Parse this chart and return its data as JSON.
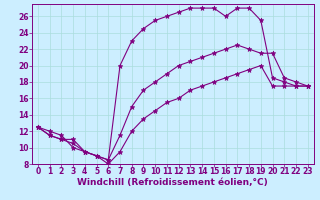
{
  "background_color": "#cceeff",
  "line_color": "#800080",
  "xlabel": "Windchill (Refroidissement éolien,°C)",
  "xlim": [
    -0.5,
    23.5
  ],
  "ylim": [
    8,
    27.5
  ],
  "yticks": [
    8,
    10,
    12,
    14,
    16,
    18,
    20,
    22,
    24,
    26
  ],
  "xticks": [
    0,
    1,
    2,
    3,
    4,
    5,
    6,
    7,
    8,
    9,
    10,
    11,
    12,
    13,
    14,
    15,
    16,
    17,
    18,
    19,
    20,
    21,
    22,
    23
  ],
  "line1_x": [
    0,
    1,
    2,
    3,
    4,
    5,
    6,
    7,
    8,
    9,
    10,
    11,
    12,
    13,
    14,
    15,
    16,
    17,
    18,
    19,
    20,
    21,
    22,
    23
  ],
  "line1_y": [
    12.5,
    12.0,
    11.5,
    10.0,
    9.5,
    9.0,
    8.5,
    20.0,
    23.0,
    24.5,
    25.5,
    26.0,
    26.5,
    27.0,
    27.0,
    27.0,
    26.0,
    27.0,
    27.0,
    25.5,
    18.5,
    18.0,
    17.5,
    17.5
  ],
  "line2_x": [
    0,
    1,
    2,
    3,
    4,
    5,
    6,
    7,
    8,
    9,
    10,
    11,
    12,
    13,
    14,
    15,
    16,
    17,
    18,
    19,
    20,
    21,
    22,
    23
  ],
  "line2_y": [
    12.5,
    11.5,
    11.0,
    11.0,
    9.5,
    9.0,
    8.5,
    11.5,
    15.0,
    17.0,
    18.0,
    19.0,
    20.0,
    20.5,
    21.0,
    21.5,
    22.0,
    22.5,
    22.0,
    21.5,
    21.5,
    18.5,
    18.0,
    17.5
  ],
  "line3_x": [
    0,
    1,
    2,
    3,
    4,
    5,
    6,
    7,
    8,
    9,
    10,
    11,
    12,
    13,
    14,
    15,
    16,
    17,
    18,
    19,
    20,
    21,
    22,
    23
  ],
  "line3_y": [
    12.5,
    11.5,
    11.0,
    10.5,
    9.5,
    9.0,
    8.0,
    9.5,
    12.0,
    13.5,
    14.5,
    15.5,
    16.0,
    17.0,
    17.5,
    18.0,
    18.5,
    19.0,
    19.5,
    20.0,
    17.5,
    17.5,
    17.5,
    17.5
  ],
  "marker": "*",
  "markersize": 3.5,
  "linewidth": 0.8,
  "grid_color": "#aadddd",
  "xlabel_fontsize": 6.5,
  "tick_fontsize": 5.5
}
